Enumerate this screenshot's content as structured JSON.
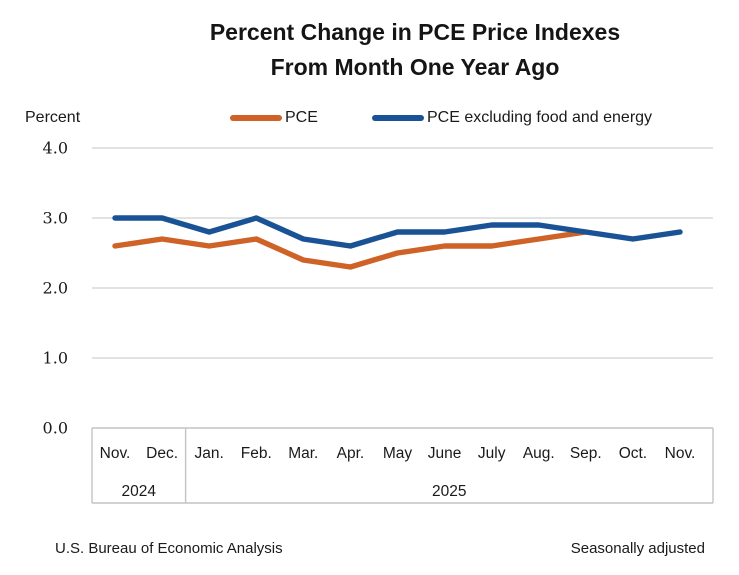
{
  "title": {
    "line1": "Percent Change in PCE Price Indexes",
    "line2": "From Month One Year Ago"
  },
  "y_axis_label": "Percent",
  "legend": {
    "items": [
      {
        "label": "PCE",
        "color": "#CE6227"
      },
      {
        "label": "PCE excluding food and energy",
        "color": "#1A5296"
      }
    ]
  },
  "chart_data": {
    "type": "line",
    "title": "Percent Change in PCE Price Indexes From Month One Year Ago",
    "ylabel": "Percent",
    "ylim": [
      0.0,
      4.0
    ],
    "ytick_labels": [
      "0.0",
      "1.0",
      "2.0",
      "3.0",
      "4.0"
    ],
    "grid": true,
    "legend_position": "top",
    "categories": [
      "Nov.",
      "Dec.",
      "Jan.",
      "Feb.",
      "Mar.",
      "Apr.",
      "May",
      "June",
      "July",
      "Aug.",
      "Sep.",
      "Oct.",
      "Nov."
    ],
    "year_groups": [
      {
        "label": "2024",
        "start_index": 0,
        "end_index": 1
      },
      {
        "label": "2025",
        "start_index": 2,
        "end_index": 12
      }
    ],
    "series": [
      {
        "name": "PCE",
        "color": "#CE6227",
        "values": [
          2.6,
          2.7,
          2.6,
          2.7,
          2.4,
          2.3,
          2.5,
          2.6,
          2.6,
          2.7,
          2.8,
          null,
          null
        ]
      },
      {
        "name": "PCE excluding food and energy",
        "color": "#1A5296",
        "values": [
          3.0,
          3.0,
          2.8,
          3.0,
          2.7,
          2.6,
          2.8,
          2.8,
          2.9,
          2.9,
          2.8,
          2.7,
          2.8
        ]
      }
    ]
  },
  "footer": {
    "left": "U.S. Bureau of Economic Analysis",
    "right": "Seasonally adjusted"
  },
  "colors": {
    "grid": "#D9D9D9",
    "axis_box": "#C3C3C3",
    "text": "#1A1A1A"
  }
}
